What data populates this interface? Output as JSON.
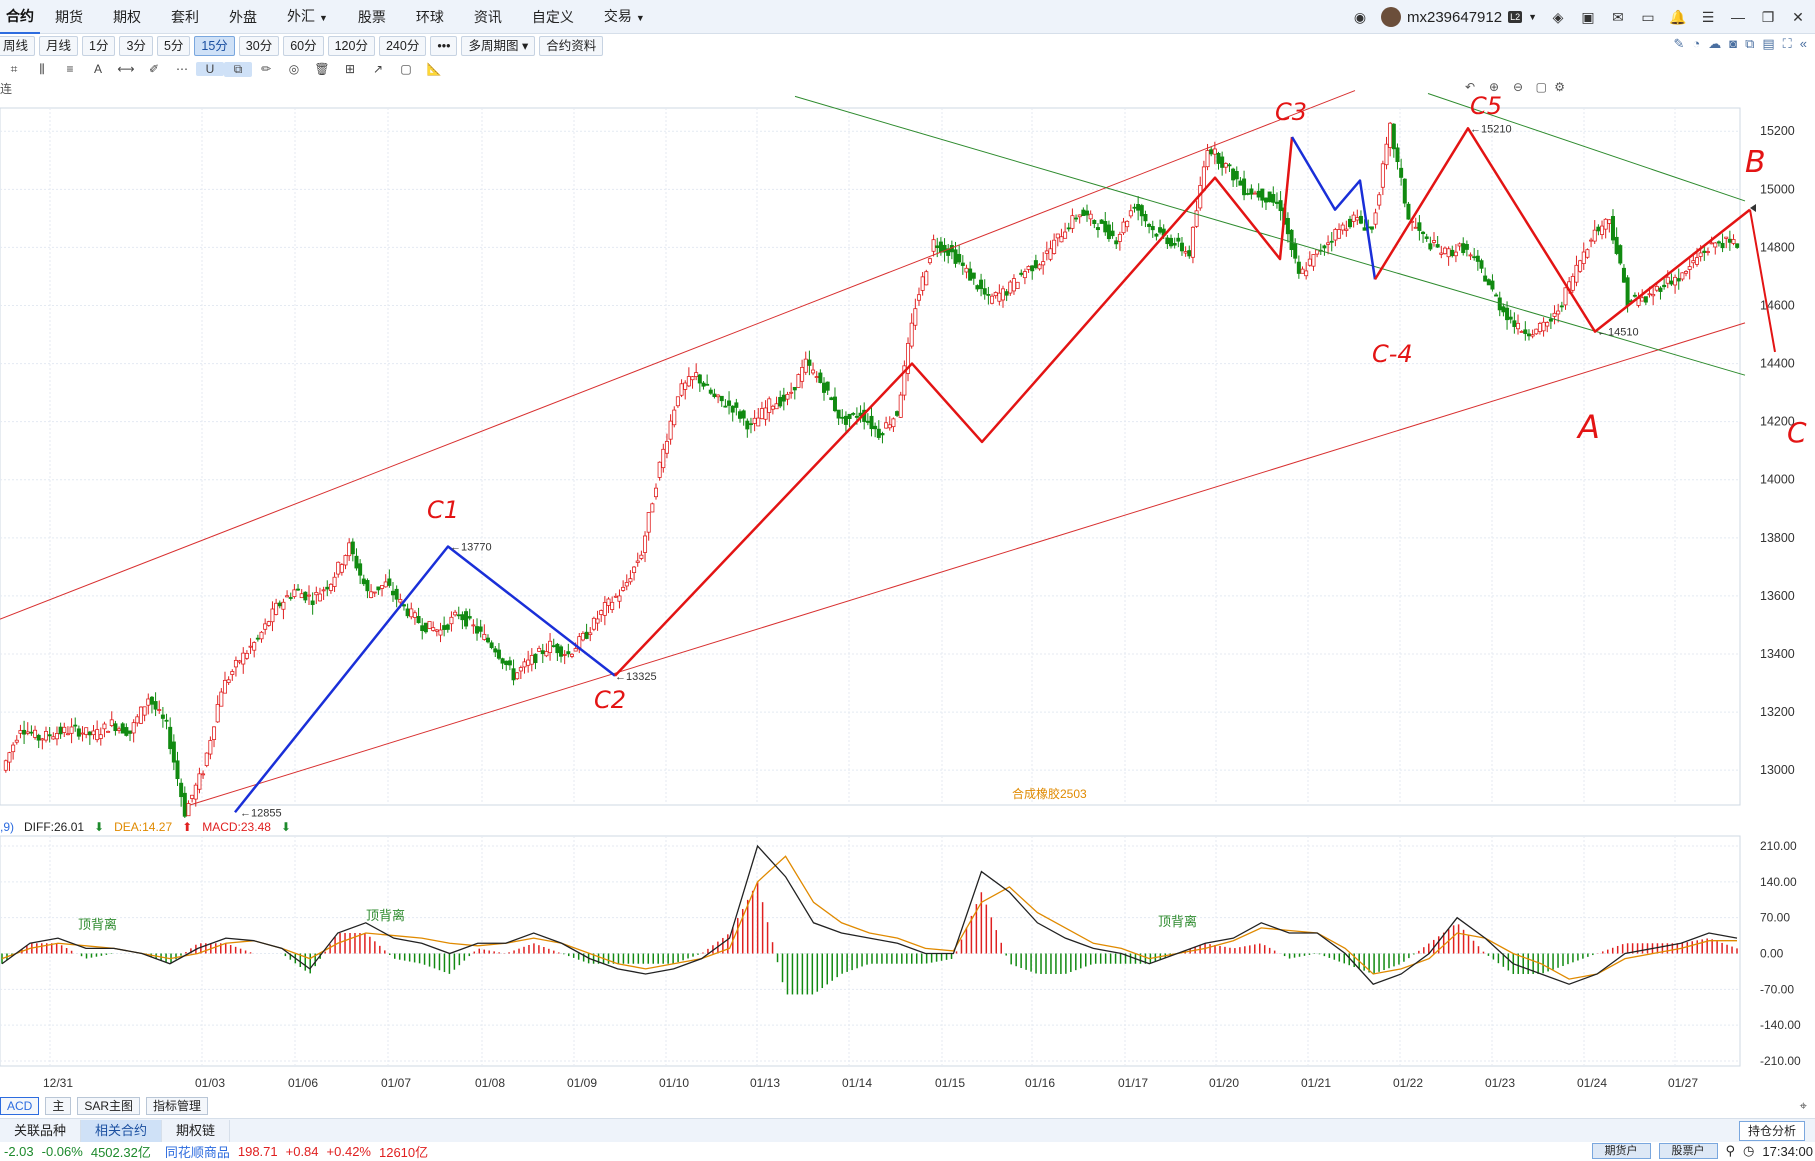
{
  "topbar": {
    "menu": [
      {
        "label": "合约",
        "active": true
      },
      {
        "label": "期货"
      },
      {
        "label": "期权"
      },
      {
        "label": "套利"
      },
      {
        "label": "外盘"
      },
      {
        "label": "外汇",
        "caret": true
      },
      {
        "label": "股票"
      },
      {
        "label": "环球"
      },
      {
        "label": "资讯"
      },
      {
        "label": "自定义"
      },
      {
        "label": "交易",
        "caret": true
      }
    ],
    "username": "mx239647912",
    "level_badge": "L2"
  },
  "toolbar": {
    "periods": [
      "周线",
      "月线",
      "1分",
      "3分",
      "5分",
      "15分",
      "30分",
      "60分",
      "120分",
      "240分"
    ],
    "active_period": "15分",
    "more_label": "•••",
    "multi_period_label": "多周期图",
    "contract_info_label": "合约资料"
  },
  "chart_head": {
    "left_label": "连"
  },
  "main_chart": {
    "contract_label": "合成橡胶2503",
    "y_ticks": [
      15200,
      15000,
      14800,
      14600,
      14400,
      14200,
      14000,
      13800,
      13600,
      13400,
      13200,
      13000
    ],
    "price_labels": {
      "low": "12855",
      "high1": "13770",
      "low2": "13325",
      "high2": "15210",
      "low3": "14510"
    },
    "annotations": {
      "c1": "C1",
      "c2": "C2",
      "c3": "C3",
      "c4": "C-4",
      "c5": "C5",
      "a": "A",
      "b": "B",
      "c": "C"
    }
  },
  "macd": {
    "prefix": ",9)",
    "diff_label": "DIFF:26.01",
    "dea_label": "DEA:14.27",
    "macd_label": "MACD:23.48",
    "y_ticks": [
      "210.00",
      "140.00",
      "70.00",
      "0.00",
      "-70.00",
      "-140.00",
      "-210.00"
    ],
    "divergence_label": "顶背离"
  },
  "xaxis": [
    "12/31",
    "01/03",
    "01/06",
    "01/07",
    "01/08",
    "01/09",
    "01/10",
    "01/13",
    "01/14",
    "01/15",
    "01/16",
    "01/17",
    "01/20",
    "01/21",
    "01/22",
    "01/23",
    "01/24",
    "01/27"
  ],
  "indicator_bar": {
    "macd": "ACD",
    "main": "主",
    "sar": "SAR主图",
    "manage": "指标管理"
  },
  "tabs": [
    {
      "label": "关联品种"
    },
    {
      "label": "相关合约",
      "active": true
    },
    {
      "label": "期权链"
    }
  ],
  "hold_analysis": "持仓分析",
  "ticker": {
    "change": "-2.03",
    "pct": "-0.06%",
    "amount": "4502.32亿",
    "name": "同花顺商品",
    "price": "198.71",
    "diff": "+0.84",
    "diff_pct": "+0.42%",
    "vol": "12610亿",
    "acct1": "期货户",
    "acct2": "股票户",
    "time": "17:34:00"
  },
  "chart_data": {
    "type": "candlestick",
    "title": "合成橡胶2503",
    "ylim": [
      12880,
      15280
    ],
    "categories": [
      "12/31",
      "01/03",
      "01/06",
      "01/07",
      "01/08",
      "01/09",
      "01/10",
      "01/13",
      "01/14",
      "01/15",
      "01/16",
      "01/17",
      "01/20",
      "01/21",
      "01/22",
      "01/23",
      "01/24",
      "01/27"
    ],
    "close_path": [
      13000,
      13150,
      13110,
      13130,
      13140,
      13120,
      13160,
      13130,
      13250,
      13150,
      12855,
      13000,
      13280,
      13380,
      13450,
      13560,
      13620,
      13590,
      13650,
      13770,
      13610,
      13640,
      13560,
      13500,
      13480,
      13540,
      13480,
      13420,
      13325,
      13380,
      13430,
      13400,
      13470,
      13560,
      13620,
      13750,
      14050,
      14300,
      14360,
      14280,
      14250,
      14180,
      14260,
      14280,
      14400,
      14320,
      14200,
      14230,
      14160,
      14230,
      14600,
      14820,
      14780,
      14700,
      14620,
      14650,
      14720,
      14760,
      14850,
      14920,
      14880,
      14830,
      14950,
      14860,
      14820,
      14780,
      15150,
      15080,
      15000,
      14980,
      14940,
      14700,
      14780,
      14850,
      14900,
      14860,
      15210,
      14900,
      14820,
      14780,
      14800,
      14720,
      14600,
      14520,
      14510,
      14560,
      14700,
      14840,
      14900,
      14620,
      14620,
      14680,
      14700,
      14780,
      14820,
      14810
    ],
    "macd": {
      "diff_path": [
        -20,
        20,
        30,
        10,
        10,
        0,
        -20,
        10,
        30,
        25,
        10,
        -30,
        40,
        60,
        30,
        20,
        0,
        20,
        20,
        40,
        20,
        -10,
        -30,
        -40,
        -30,
        -10,
        30,
        210,
        150,
        60,
        40,
        30,
        20,
        0,
        0,
        160,
        120,
        60,
        30,
        10,
        0,
        -20,
        0,
        20,
        30,
        60,
        40,
        40,
        0,
        -60,
        -40,
        0,
        70,
        30,
        -20,
        -40,
        -60,
        -40,
        0,
        10,
        20,
        40,
        30
      ],
      "dea_path": [
        -10,
        10,
        20,
        15,
        10,
        0,
        -10,
        0,
        20,
        25,
        10,
        -10,
        20,
        40,
        35,
        30,
        20,
        15,
        20,
        30,
        20,
        0,
        -20,
        -30,
        -20,
        -10,
        10,
        140,
        190,
        100,
        60,
        40,
        30,
        10,
        5,
        100,
        130,
        80,
        50,
        20,
        10,
        -10,
        0,
        10,
        25,
        50,
        45,
        40,
        10,
        -40,
        -30,
        -10,
        40,
        30,
        0,
        -20,
        -50,
        -40,
        -10,
        0,
        10,
        25,
        25
      ]
    }
  }
}
